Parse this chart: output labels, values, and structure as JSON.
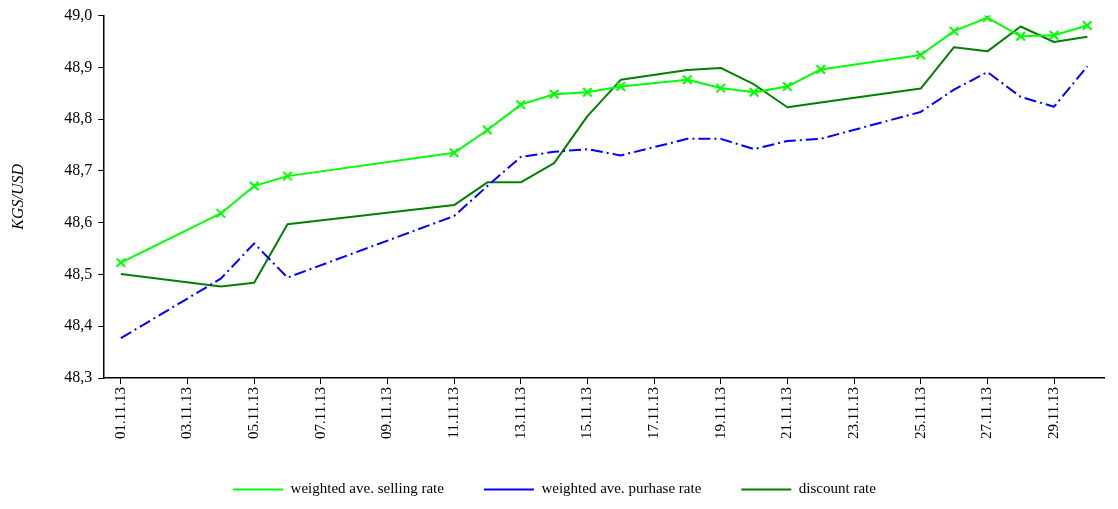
{
  "chart_data": {
    "type": "line",
    "ylabel": "KGS/USD",
    "x": [
      "--11-01",
      "--11-04",
      "--11-05",
      "--11-06",
      "--11-11",
      "--11-12",
      "--11-13",
      "--11-14",
      "--11-15",
      "--11-16",
      "--11-18",
      "--11-19",
      "--11-20",
      "--11-21",
      "--11-22",
      "--11-25",
      "--11-26",
      "--11-27",
      "--11-28",
      "--11-29",
      "--11-30"
    ],
    "series": [
      {
        "name": "weighted ave. selling rate",
        "color": "#00ff00",
        "marker": "cross",
        "line_style": "solid",
        "values": [
          48.523,
          48.618,
          48.671,
          48.69,
          48.735,
          48.779,
          48.828,
          48.848,
          48.852,
          48.863,
          48.876,
          48.86,
          48.852,
          48.863,
          48.896,
          48.924,
          48.97,
          48.996,
          48.96,
          48.962,
          48.981
        ]
      },
      {
        "name": "weighted ave. purhase rate",
        "color": "#0000ff",
        "marker": "none",
        "line_style": "dashed",
        "values": [
          48.377,
          48.492,
          48.56,
          48.494,
          48.613,
          48.671,
          48.727,
          48.737,
          48.742,
          48.73,
          48.762,
          48.762,
          48.742,
          48.758,
          48.762,
          48.814,
          48.857,
          48.891,
          48.843,
          48.824,
          48.902
        ]
      },
      {
        "name": "discount rate",
        "color": "#007f00",
        "marker": "none",
        "line_style": "solid",
        "values": [
          48.501,
          48.477,
          48.484,
          48.597,
          48.634,
          48.678,
          48.678,
          48.715,
          48.806,
          48.876,
          48.895,
          48.899,
          48.867,
          48.823,
          48.832,
          48.859,
          48.939,
          48.931,
          48.979,
          48.949,
          48.959
        ]
      }
    ],
    "xlim": [
      "--10-31T12:00",
      "--11-30T12:00"
    ],
    "xticks": [
      {
        "value": "--11-01",
        "label": "01.11.13"
      },
      {
        "value": "--11-03",
        "label": "03.11.13"
      },
      {
        "value": "--11-05",
        "label": "05.11.13"
      },
      {
        "value": "--11-07",
        "label": "07.11.13"
      },
      {
        "value": "--11-09",
        "label": "09.11.13"
      },
      {
        "value": "--11-11",
        "label": "11.11.13"
      },
      {
        "value": "--11-13",
        "label": "13.11.13"
      },
      {
        "value": "--11-15",
        "label": "15.11.13"
      },
      {
        "value": "--11-17",
        "label": "17.11.13"
      },
      {
        "value": "--11-19",
        "label": "19.11.13"
      },
      {
        "value": "--11-21",
        "label": "21.11.13"
      },
      {
        "value": "--11-23",
        "label": "23.11.13"
      },
      {
        "value": "--11-25",
        "label": "25.11.13"
      },
      {
        "value": "--11-27",
        "label": "27.11.13"
      },
      {
        "value": "--11-29",
        "label": "29.11.13"
      }
    ],
    "ylim": [
      48.3,
      49.0
    ],
    "yticks": [
      {
        "value": 48.3,
        "label": "48,3"
      },
      {
        "value": 48.4,
        "label": "48,4"
      },
      {
        "value": 48.5,
        "label": "48,5"
      },
      {
        "value": 48.6,
        "label": "48,6"
      },
      {
        "value": 48.7,
        "label": "48,7"
      },
      {
        "value": 48.8,
        "label": "48,8"
      },
      {
        "value": 48.9,
        "label": "48,9"
      },
      {
        "value": 49.0,
        "label": "49,0"
      }
    ],
    "grid": false,
    "legend": "bottom"
  }
}
